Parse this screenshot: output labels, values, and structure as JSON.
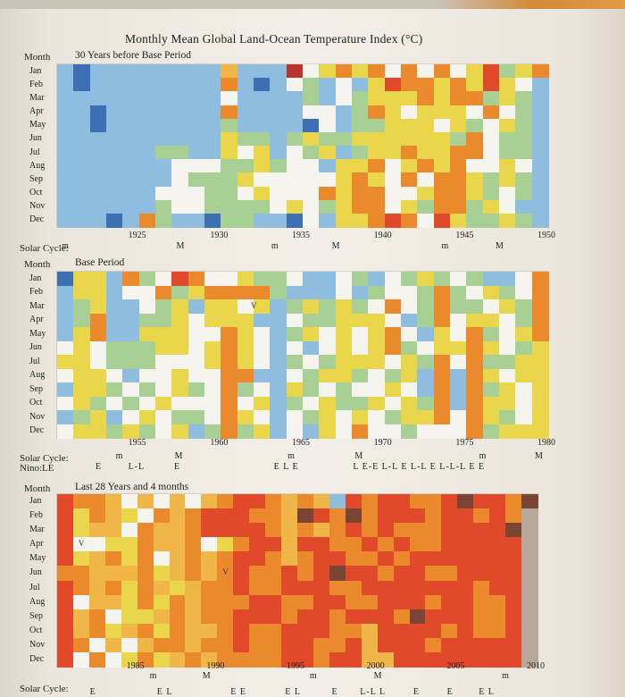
{
  "page": {
    "title": "Monthly Mean Global Land-Ocean Temperature Index (°C)"
  },
  "legend_colors": {
    "darkblue": "#3c6fb4",
    "blue": "#8fbde0",
    "green": "#a8cf94",
    "white": "#f6f4ef",
    "yellow": "#ead64a",
    "lightorange": "#f0b748",
    "orange": "#ea8a2c",
    "red": "#e0492a",
    "darkred": "#b8342a",
    "brown": "#7a4535",
    "nodata": "#b8a89a"
  },
  "chart_data": [
    {
      "type": "heatmap",
      "title": "30 Years before Base Period",
      "row_header": "Month",
      "rows": [
        "Jan",
        "Feb",
        "Mar",
        "Apr",
        "May",
        "Jun",
        "Jul",
        "Aug",
        "Sep",
        "Oct",
        "Nov",
        "Dec"
      ],
      "x_ticks": [
        "1925",
        "1930",
        "1935",
        "1940",
        "1945",
        "1950"
      ],
      "x_range": [
        1921,
        1950
      ],
      "solar_cycle_label": "Solar Cycle:",
      "solar_cycle": [
        {
          "label": "m",
          "year": 1921.0
        },
        {
          "label": "M",
          "year": 1928.0
        },
        {
          "label": "m",
          "year": 1933.8
        },
        {
          "label": "M",
          "year": 1937.5
        },
        {
          "label": "m",
          "year": 1944.2
        },
        {
          "label": "M",
          "year": 1947.5
        }
      ],
      "columns": 30,
      "cells": [
        "BDBBBBBBBBLBBBTWYOYOWOWOWYRGYO",
        "BDBBBBBBBBOBDBWGBWBYROOYOYRYWB",
        "BBBBBBBBBBWBBBBGBWGYYYOYOOGYGB",
        "BBDBBBBBBBOBBBBWWBGOYWYYYWOWGB",
        "BBDBBBBBBBGBBBBDWBGGYYYWYGWYGB",
        "BBBBBBBBBBYGGBGYGGYYYYYYGOWGGB",
        "BBBBBBGGBBYWYBWGYBGYYOYYOOWGGB",
        "BBBBBBBWWWGGYGWWBYYOWYOYOWWYWB",
        "BBBBBBBWGGGYWWWWWYOYWOWOOYGYGB",
        "BBBBBBWWWGGWYWWWOYOOWWYOOYGWGB",
        "BBBBBBGWWGGGGWYWGYOOWYGOOGYWBB",
        "BBBDBOGBBDGGBBDWBYYOROWRYGGYGB"
      ]
    },
    {
      "type": "heatmap",
      "title": "Base Period",
      "row_header": "Month",
      "rows": [
        "Jan",
        "Feb",
        "Mar",
        "Apr",
        "May",
        "Jun",
        "Jul",
        "Aug",
        "Sep",
        "Oct",
        "Nov",
        "Dec"
      ],
      "x_ticks": [
        "1955",
        "1960",
        "1965",
        "1970",
        "1975",
        "1980"
      ],
      "x_range": [
        1951,
        1980
      ],
      "solar_cycle_label": "Solar Cycle:",
      "solar_cycle": [
        {
          "label": "m",
          "year": 1954.3
        },
        {
          "label": "M",
          "year": 1957.9
        },
        {
          "label": "m",
          "year": 1964.8
        },
        {
          "label": "M",
          "year": 1968.9
        },
        {
          "label": "m",
          "year": 1976.5
        },
        {
          "label": "M",
          "year": 1979.9
        }
      ],
      "nino_label": "Nino:LE",
      "nino_sequence": [
        {
          "text": "E",
          "year": 1953.0
        },
        {
          "text": "L-L",
          "year": 1955.3
        },
        {
          "text": "E",
          "year": 1957.8
        },
        {
          "text": "E L E",
          "year": 1964.5
        },
        {
          "text": "L E-E L-L E L-L E L-L-L E E",
          "year": 1972.7
        }
      ],
      "annotations": [
        {
          "text": "V",
          "year": 1962.5,
          "month": "Mar"
        }
      ],
      "columns": 30,
      "cells": [
        "DYYBOGWROWWYGGWBBWGBWGYGWGBBWO",
        "BYYBWWOGYOOOOGBBBWBGWWGOGWYGWO",
        "BGYBBWGYBYYWYBGYGYGWOWGOGGWYGO",
        "BGOBBGGYWYYYBBWGGYYYWBGOWYYWGO",
        "BYOBBYYYWWOYWBGYWYWYOWBYWOGWYO",
        "WYWGGGYYWYOYWBWBWYWYOGWYYOYWGY",
        "YYWGGGWWWYOYWBGWGYYYWYGOWOGGYY",
        "WYYWBWWYWWOOBBWGYYGWGYBOBOYWYY",
        "BYYGWGWYGWOGWBYGWGWWYWBOBOGYWY",
        "WYGWGWYWWWOWYBGWYGGYWYGOBOYYWY",
        "BGYBWYWGGWOYWBWGYWYWGYYOWOYGWY",
        "WYYGYGWYBGOGYBWBYWOWWGWWWOGYYY"
      ]
    },
    {
      "type": "heatmap",
      "title": "Last 28 Years and 4 months",
      "row_header": "Month",
      "rows": [
        "Jan",
        "Feb",
        "Mar",
        "Apr",
        "May",
        "Jun",
        "Jul",
        "Aug",
        "Sep",
        "Oct",
        "Nov",
        "Dec"
      ],
      "x_ticks": [
        "1985",
        "1990",
        "1995",
        "2000",
        "2005",
        "2010"
      ],
      "x_range": [
        1981,
        2010
      ],
      "solar_cycle_label": "Solar Cycle:",
      "solar_cycle": [
        {
          "label": "m",
          "year": 1986.5
        },
        {
          "label": "M",
          "year": 1989.8
        },
        {
          "label": "m",
          "year": 1996.5
        },
        {
          "label": "M",
          "year": 2000.5
        },
        {
          "label": "m",
          "year": 2008.5
        }
      ],
      "nino_sequence": [
        {
          "text": "E",
          "year": 1982.7
        },
        {
          "text": "E L",
          "year": 1987.2
        },
        {
          "text": "E E",
          "year": 1991.8
        },
        {
          "text": "E L",
          "year": 1995.2
        },
        {
          "text": "E",
          "year": 1997.8
        },
        {
          "text": "L-L L",
          "year": 2000.2
        },
        {
          "text": "E",
          "year": 2002.9
        },
        {
          "text": "E",
          "year": 2005.0
        },
        {
          "text": "E L",
          "year": 2007.3
        }
      ],
      "annotations": [
        {
          "text": "V",
          "year": 1982.0,
          "month": "Apr"
        },
        {
          "text": "V",
          "year": 1991.0,
          "month": "Jun"
        }
      ],
      "columns": 30,
      "cells": [
        "ROOLWLWLWLORROLOLBRORROORNRRON",
        "RYOLYWOLORRROOLNRONORRRORROROX",
        "RYLLWOLLORRRROLOLOROROOORRRRNX",
        "RWWYYOLLOWYORRLRROOROROORRRRRX",
        "RYLOYOWLOLORROLORROORORRRRRRRX",
        "OOLLLOYLOLOROORORNRRORROORRRRX",
        "ROLOYOLYLOOROORRROORRRRRRRORRX",
        "RWLLYOYOLOOORROORROORRRORROORX",
        "RLOWYYLOLOORRRORRORRRONRRROORX",
        "RLOYLOYOLLOROORRROOLRRRROROORX",
        "ROWLWLOOLOOROORROORLRRRORRRRRX",
        "RWOWYOYLOLOOOORRORRLLRRRRRRRRX"
      ]
    }
  ]
}
